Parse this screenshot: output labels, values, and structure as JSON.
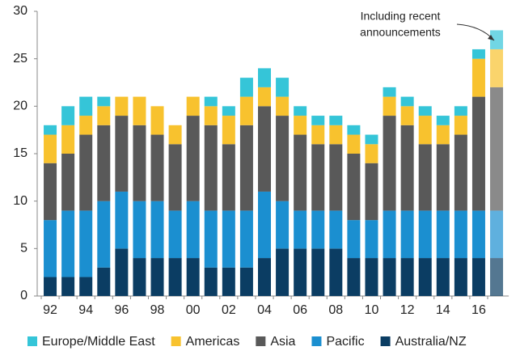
{
  "chart_data": {
    "type": "stacked_bar",
    "categories": [
      "92",
      null,
      "94",
      null,
      "96",
      null,
      "98",
      null,
      "00",
      null,
      "02",
      null,
      "04",
      null,
      "06",
      null,
      "08",
      null,
      "10",
      null,
      "12",
      null,
      "14",
      null,
      "16",
      null
    ],
    "series": [
      {
        "name": "Europe/Middle East",
        "color": "#35c5d8",
        "values": [
          1,
          2,
          2,
          1,
          0,
          0,
          0,
          0,
          0,
          1,
          1,
          2,
          2,
          2,
          1,
          1,
          1,
          1,
          1,
          1,
          1,
          1,
          1,
          1,
          1,
          2
        ]
      },
      {
        "name": "Americas",
        "color": "#f8c22e",
        "values": [
          3,
          3,
          2,
          2,
          2,
          3,
          3,
          2,
          2,
          2,
          3,
          3,
          2,
          2,
          2,
          2,
          2,
          2,
          2,
          2,
          2,
          3,
          2,
          2,
          4,
          4
        ]
      },
      {
        "name": "Asia",
        "color": "#595959",
        "values": [
          6,
          6,
          8,
          8,
          8,
          8,
          7,
          7,
          9,
          9,
          7,
          9,
          9,
          9,
          8,
          7,
          7,
          7,
          6,
          10,
          9,
          7,
          7,
          8,
          12,
          13
        ]
      },
      {
        "name": "Pacific",
        "color": "#1b8fd0",
        "values": [
          6,
          7,
          7,
          7,
          6,
          6,
          6,
          5,
          6,
          6,
          6,
          6,
          7,
          5,
          4,
          4,
          4,
          4,
          4,
          5,
          5,
          5,
          5,
          5,
          5,
          5
        ]
      },
      {
        "name": "Australia/NZ",
        "color": "#0b3d63",
        "values": [
          2,
          2,
          2,
          3,
          5,
          4,
          4,
          4,
          4,
          3,
          3,
          3,
          4,
          5,
          5,
          5,
          5,
          4,
          4,
          4,
          4,
          4,
          4,
          4,
          4,
          4
        ]
      }
    ],
    "ylim": [
      0,
      30
    ],
    "yticks": [
      0,
      5,
      10,
      15,
      20,
      25,
      30
    ],
    "annotation": [
      "Including recent",
      "announcements"
    ]
  }
}
